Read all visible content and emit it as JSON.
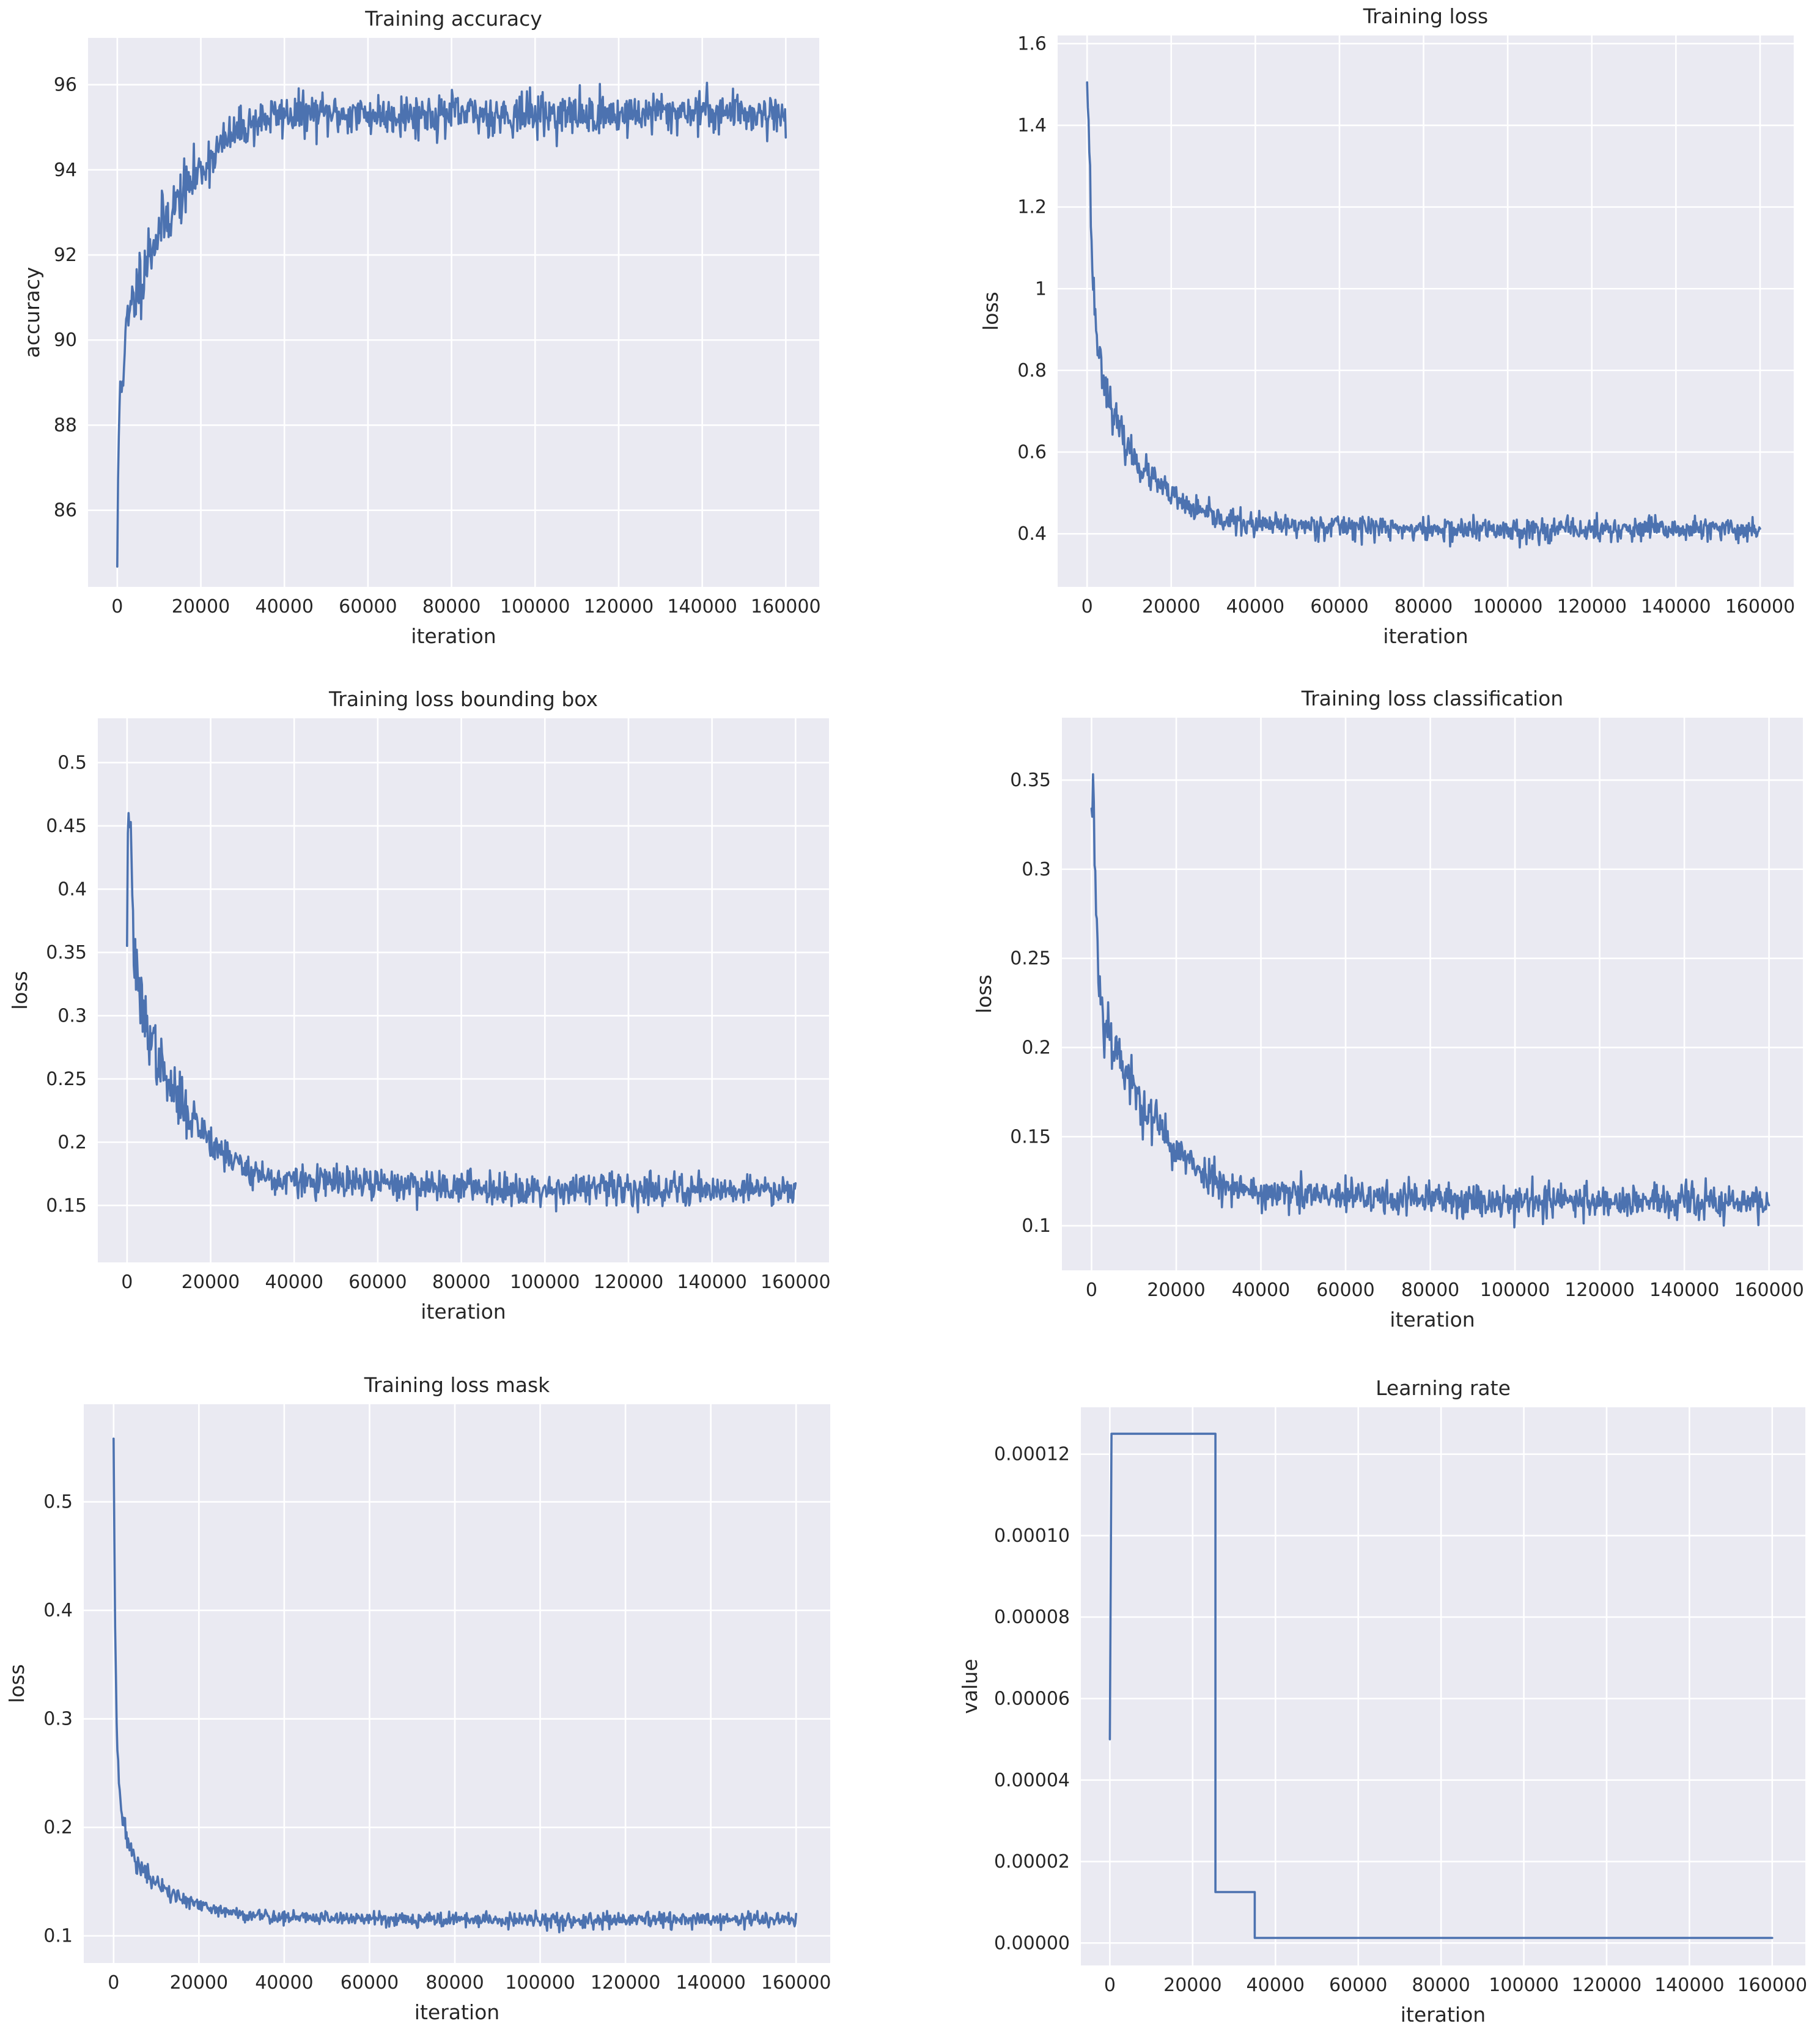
{
  "colors": {
    "background": "#ffffff",
    "plot_background": "#eaeaf2",
    "grid": "#ffffff",
    "series": "#4c72b0",
    "text": "#262626"
  },
  "chart_data": [
    {
      "type": "line",
      "title": "Training accuracy",
      "xlabel": "iteration",
      "ylabel": "accuracy",
      "xlim": [
        -7000,
        168000
      ],
      "ylim": [
        84.2,
        97.1
      ],
      "xticks": [
        0,
        20000,
        40000,
        60000,
        80000,
        100000,
        120000,
        140000,
        160000
      ],
      "yticks": [
        86,
        88,
        90,
        92,
        94,
        96
      ],
      "grid": true,
      "legend": "none",
      "trend": {
        "x": [
          0,
          500,
          1500,
          3000,
          5000,
          8000,
          12000,
          16000,
          20000,
          25000,
          30000,
          35000,
          40000,
          50000,
          60000,
          80000,
          100000,
          120000,
          140000,
          160000
        ],
        "y": [
          84.8,
          88.6,
          89.6,
          90.6,
          91.3,
          92.2,
          92.9,
          93.5,
          94.0,
          94.6,
          95.0,
          95.2,
          95.3,
          95.3,
          95.3,
          95.3,
          95.3,
          95.3,
          95.4,
          95.3
        ]
      },
      "noise": [
        1.0,
        0.55
      ],
      "points": 900,
      "seed": 11
    },
    {
      "type": "line",
      "title": "Training loss",
      "xlabel": "iteration",
      "ylabel": "loss",
      "xlim": [
        -7000,
        168000
      ],
      "ylim": [
        0.27,
        1.62
      ],
      "xticks": [
        0,
        20000,
        40000,
        60000,
        80000,
        100000,
        120000,
        140000,
        160000
      ],
      "yticks": [
        0.4,
        0.6,
        0.8,
        1.0,
        1.2,
        1.4,
        1.6
      ],
      "grid": true,
      "legend": "none",
      "trend": {
        "x": [
          0,
          600,
          1200,
          2500,
          4000,
          6000,
          9000,
          13000,
          18000,
          23000,
          30000,
          40000,
          60000,
          80000,
          100000,
          120000,
          140000,
          160000
        ],
        "y": [
          1.53,
          1.32,
          1.05,
          0.86,
          0.78,
          0.7,
          0.62,
          0.56,
          0.51,
          0.47,
          0.44,
          0.42,
          0.42,
          0.41,
          0.41,
          0.41,
          0.41,
          0.41
        ]
      },
      "noise": [
        0.05,
        0.033
      ],
      "points": 900,
      "seed": 23
    },
    {
      "type": "line",
      "title": "Training loss bounding box",
      "xlabel": "iteration",
      "ylabel": "loss",
      "xlim": [
        -7000,
        168000
      ],
      "ylim": [
        0.105,
        0.535
      ],
      "xticks": [
        0,
        20000,
        40000,
        60000,
        80000,
        100000,
        120000,
        140000,
        160000
      ],
      "yticks": [
        0.15,
        0.2,
        0.25,
        0.3,
        0.35,
        0.4,
        0.45,
        0.5
      ],
      "grid": true,
      "legend": "none",
      "trend": {
        "x": [
          0,
          400,
          900,
          1500,
          2500,
          4000,
          6000,
          9000,
          13000,
          18000,
          22000,
          28000,
          35000,
          50000,
          80000,
          100000,
          120000,
          140000,
          160000
        ],
        "y": [
          0.37,
          0.48,
          0.44,
          0.36,
          0.32,
          0.3,
          0.28,
          0.25,
          0.23,
          0.21,
          0.195,
          0.18,
          0.17,
          0.168,
          0.165,
          0.163,
          0.163,
          0.163,
          0.163
        ]
      },
      "noise": [
        0.03,
        0.014
      ],
      "points": 900,
      "seed": 37
    },
    {
      "type": "line",
      "title": "Training loss classification",
      "xlabel": "iteration",
      "ylabel": "loss",
      "xlim": [
        -7000,
        168000
      ],
      "ylim": [
        0.075,
        0.385
      ],
      "xticks": [
        0,
        20000,
        40000,
        60000,
        80000,
        100000,
        120000,
        140000,
        160000
      ],
      "yticks": [
        0.1,
        0.15,
        0.2,
        0.25,
        0.3,
        0.35
      ],
      "grid": true,
      "legend": "none",
      "trend": {
        "x": [
          0,
          300,
          800,
          1500,
          2500,
          4000,
          6000,
          9000,
          13000,
          18000,
          23000,
          30000,
          40000,
          60000,
          80000,
          100000,
          120000,
          140000,
          160000
        ],
        "y": [
          0.32,
          0.36,
          0.3,
          0.25,
          0.22,
          0.21,
          0.2,
          0.18,
          0.165,
          0.148,
          0.135,
          0.125,
          0.118,
          0.116,
          0.115,
          0.114,
          0.114,
          0.113,
          0.113
        ]
      },
      "noise": [
        0.022,
        0.011
      ],
      "points": 900,
      "seed": 53
    },
    {
      "type": "line",
      "title": "Training loss mask",
      "xlabel": "iteration",
      "ylabel": "loss",
      "xlim": [
        -7000,
        168000
      ],
      "ylim": [
        0.075,
        0.59
      ],
      "xticks": [
        0,
        20000,
        40000,
        60000,
        80000,
        100000,
        120000,
        140000,
        160000
      ],
      "yticks": [
        0.1,
        0.2,
        0.3,
        0.4,
        0.5
      ],
      "grid": true,
      "legend": "none",
      "trend": {
        "x": [
          0,
          300,
          700,
          1200,
          2000,
          3000,
          5000,
          8000,
          12000,
          17000,
          22000,
          30000,
          40000,
          60000,
          80000,
          100000,
          120000,
          140000,
          160000
        ],
        "y": [
          0.56,
          0.4,
          0.3,
          0.25,
          0.21,
          0.19,
          0.17,
          0.155,
          0.142,
          0.132,
          0.125,
          0.12,
          0.117,
          0.116,
          0.115,
          0.114,
          0.114,
          0.115,
          0.115
        ]
      },
      "noise": [
        0.012,
        0.0075
      ],
      "points": 900,
      "seed": 71
    },
    {
      "type": "line",
      "title": "Learning rate",
      "xlabel": "iteration",
      "ylabel": "value",
      "xlim": [
        -7000,
        168000
      ],
      "ylim": [
        -5.5e-06,
        0.0001315
      ],
      "xticks": [
        0,
        20000,
        40000,
        60000,
        80000,
        100000,
        120000,
        140000,
        160000
      ],
      "yticks": [
        0.0,
        2e-05,
        4e-05,
        6e-05,
        8e-05,
        0.0001,
        0.00012
      ],
      "ytick_labels": [
        "0.00000",
        "0.00002",
        "0.00004",
        "0.00006",
        "0.00008",
        "0.00010",
        "0.00012"
      ],
      "grid": true,
      "legend": "none",
      "x": [
        0,
        400,
        400,
        25500,
        25500,
        35000,
        35000,
        160000
      ],
      "y": [
        5e-05,
        0.000125,
        0.000125,
        0.000125,
        1.25e-05,
        1.25e-05,
        1.25e-06,
        1.25e-06
      ]
    }
  ]
}
